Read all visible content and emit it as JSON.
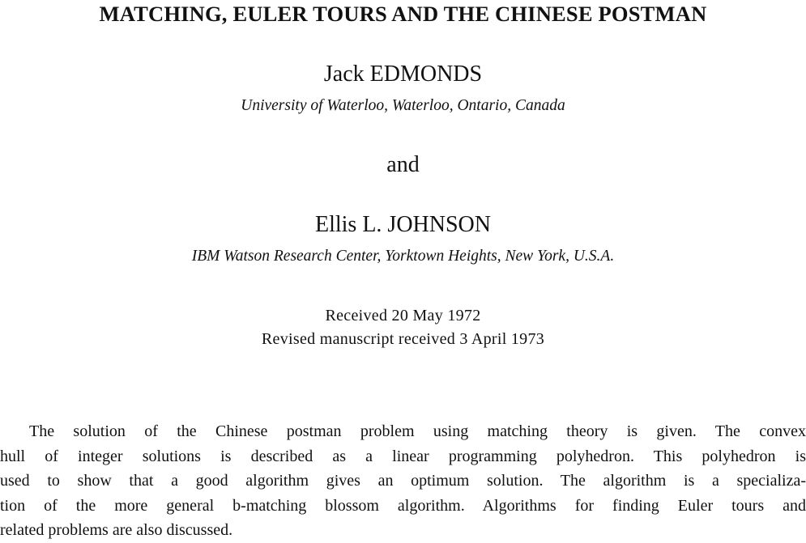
{
  "header": {
    "title": "MATCHING, EULER TOURS AND THE CHINESE POSTMAN",
    "authors": [
      {
        "name": "Jack EDMONDS",
        "affiliation": "University of Waterloo, Waterloo, Ontario, Canada"
      },
      {
        "name": "Ellis L. JOHNSON",
        "affiliation": "IBM Watson Research Center, Yorktown Heights, New York, U.S.A."
      }
    ],
    "conjunction": "and",
    "received": "Received 20 May 1972",
    "revised": "Revised manuscript received 3 April 1973"
  },
  "abstract": {
    "lines": [
      "The solution of the Chinese postman problem using matching theory is given. The convex",
      "hull of integer solutions is described as a linear programming polyhedron. This polyhedron is",
      "used to show that a good algorithm gives an optimum solution. The algorithm is a specializa-",
      "tion of the more general b-matching blossom algorithm. Algorithms for finding Euler tours and",
      "related problems are also discussed."
    ]
  }
}
